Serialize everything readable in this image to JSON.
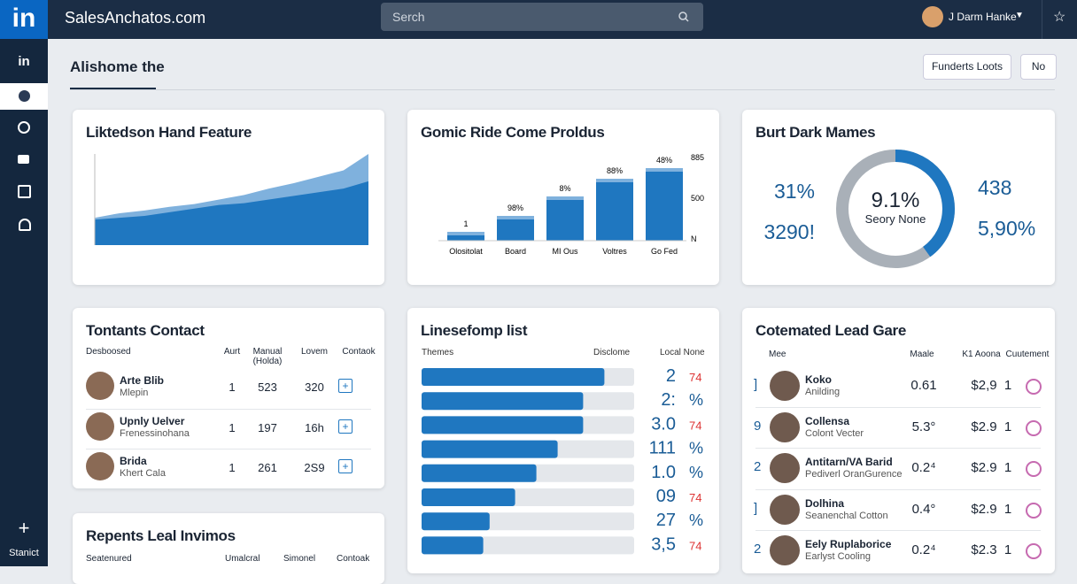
{
  "header": {
    "logo": "in",
    "brand": "SalesAnchatos.com",
    "search_placeholder": "Serch",
    "user": "J Darm Hanke"
  },
  "sidebar": {
    "top": "in",
    "bottom_label": "Stanict"
  },
  "page": {
    "title": "Alishome the",
    "buttons": [
      "Funderts Loots",
      "No"
    ]
  },
  "area_card": {
    "title": "Liktedson Hand Feature",
    "ylim": [
      0,
      100
    ],
    "series": [
      {
        "color": "#7fb1dd",
        "values": [
          30,
          35,
          38,
          42,
          45,
          50,
          55,
          62,
          68,
          75,
          82,
          100
        ]
      },
      {
        "color": "#1f77c0",
        "values": [
          28,
          30,
          32,
          36,
          40,
          44,
          46,
          50,
          54,
          58,
          62,
          70
        ]
      }
    ]
  },
  "bar_card": {
    "title": "Gomic Ride Come Proldus",
    "color": "#1f77c0",
    "ylim": [
      0,
      100
    ],
    "categories": [
      "Olositolat",
      "Board",
      "MI Ous",
      "Voltres",
      "Go Fed"
    ],
    "values": [
      10,
      28,
      50,
      70,
      82
    ],
    "labels": [
      "1",
      "98%",
      "8%",
      "88%",
      "48%"
    ],
    "axis_labels": [
      "885",
      "500",
      "N"
    ]
  },
  "donut_card": {
    "title": "Burt Dark Mames",
    "value": 40,
    "center": "9.1%",
    "center_sub": "Seory None",
    "left": [
      "31%",
      "3290!"
    ],
    "right": [
      "438",
      "5,90%"
    ]
  },
  "contacts": {
    "title": "Tontants Contact",
    "columns": [
      "Desboosed",
      "Aurt",
      "Manual (Holda)",
      "Lovem",
      "Contaok"
    ],
    "rows": [
      [
        "Arte Blib",
        "Mlepin",
        "1",
        "523",
        "320"
      ],
      [
        "Upnly Uelver",
        "Frenessinohana",
        "1",
        "197",
        "16h"
      ],
      [
        "Brida",
        "Khert Cala",
        "1",
        "261",
        "2S9"
      ]
    ]
  },
  "list_card": {
    "title": "Linesefomp list",
    "columns": [
      "Themes",
      "Disclome",
      "Local None"
    ],
    "xlim": [
      0,
      100
    ],
    "values": [
      86,
      76,
      76,
      64,
      54,
      44,
      32,
      29
    ],
    "labels": [
      [
        "2",
        "74"
      ],
      [
        "2:",
        "%"
      ],
      [
        "3.0",
        "74"
      ],
      [
        "111",
        "%"
      ],
      [
        "1.0",
        "%"
      ],
      [
        "09",
        "74"
      ],
      [
        "27",
        "%"
      ],
      [
        "3,5",
        "74"
      ]
    ]
  },
  "lead_card": {
    "title": "Cotemated Lead Gare",
    "columns": [
      "Mee",
      "Maale",
      "K1 Aoona",
      "Cuutement"
    ],
    "rows": [
      [
        "]",
        "Koko",
        "Anilding",
        "0.61",
        "$2,9",
        "1"
      ],
      [
        "9",
        "Collensa",
        "Colont Vecter",
        "5.3°",
        "$2.9",
        "1"
      ],
      [
        "2",
        "Antitarn/VA Barid",
        "Pediverl OranGurence",
        "0.2⁴",
        "$2.9",
        "1"
      ],
      [
        "]",
        "Dolhina",
        "Seanenchal Cotton",
        "0.4°",
        "$2.9",
        "1"
      ],
      [
        "2",
        "Eely Ruplaborice",
        "Earlyst Cooling",
        "0.2⁴",
        "$2.3",
        "1"
      ]
    ]
  },
  "recent_card": {
    "title": "Repents Leal Invimos",
    "columns": [
      "Seatenured",
      "Umalcral",
      "Simonel",
      "Contoak"
    ]
  }
}
